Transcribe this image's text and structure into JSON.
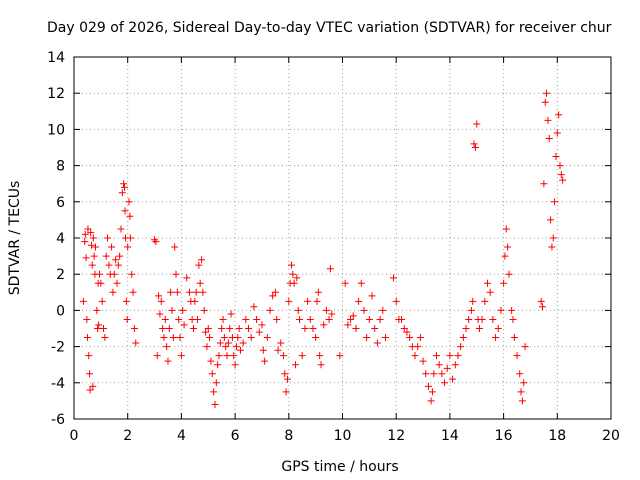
{
  "chart_data": {
    "type": "scatter",
    "title": "Day 029 of 2026, Sidereal Day-to-day VTEC variation (SDTVAR) for receiver chur",
    "xlabel": "GPS time / hours",
    "ylabel": "SDTVAR / TECUs",
    "xlim": [
      0,
      20
    ],
    "ylim": [
      -6,
      14
    ],
    "x_ticks": [
      0,
      2,
      4,
      6,
      8,
      10,
      12,
      14,
      16,
      18,
      20
    ],
    "y_ticks": [
      -6,
      -4,
      -2,
      0,
      2,
      4,
      6,
      8,
      10,
      12,
      14
    ],
    "grid": true,
    "marker": "+",
    "series": [
      {
        "name": "SDTVAR",
        "color": "#ff0000",
        "points": [
          [
            0.35,
            0.5
          ],
          [
            0.4,
            3.8
          ],
          [
            0.42,
            4.2
          ],
          [
            0.45,
            2.9
          ],
          [
            0.48,
            -0.5
          ],
          [
            0.5,
            -1.5
          ],
          [
            0.52,
            4.5
          ],
          [
            0.55,
            -2.5
          ],
          [
            0.58,
            -3.5
          ],
          [
            0.6,
            -4.4
          ],
          [
            0.62,
            4.3
          ],
          [
            0.65,
            3.6
          ],
          [
            0.68,
            2.5
          ],
          [
            0.7,
            -4.2
          ],
          [
            0.72,
            4.0
          ],
          [
            0.75,
            3.0
          ],
          [
            0.78,
            2.0
          ],
          [
            0.8,
            3.5
          ],
          [
            0.85,
            0.0
          ],
          [
            0.88,
            -1.0
          ],
          [
            0.9,
            1.5
          ],
          [
            0.92,
            -0.8
          ],
          [
            0.95,
            2.0
          ],
          [
            1.0,
            1.5
          ],
          [
            1.05,
            0.5
          ],
          [
            1.1,
            -1.0
          ],
          [
            1.15,
            -1.5
          ],
          [
            1.2,
            3.0
          ],
          [
            1.25,
            4.0
          ],
          [
            1.3,
            2.5
          ],
          [
            1.35,
            2.0
          ],
          [
            1.4,
            3.5
          ],
          [
            1.45,
            1.0
          ],
          [
            1.5,
            2.0
          ],
          [
            1.55,
            2.8
          ],
          [
            1.6,
            1.5
          ],
          [
            1.65,
            2.5
          ],
          [
            1.7,
            3.0
          ],
          [
            1.75,
            4.5
          ],
          [
            1.8,
            6.5
          ],
          [
            1.85,
            7.0
          ],
          [
            1.88,
            6.8
          ],
          [
            1.9,
            5.5
          ],
          [
            1.92,
            4.0
          ],
          [
            1.95,
            0.5
          ],
          [
            1.98,
            -0.5
          ],
          [
            2.0,
            3.5
          ],
          [
            2.05,
            6.0
          ],
          [
            2.08,
            5.2
          ],
          [
            2.1,
            4.0
          ],
          [
            2.15,
            2.0
          ],
          [
            2.2,
            1.0
          ],
          [
            2.25,
            -1.0
          ],
          [
            2.3,
            -1.8
          ],
          [
            3.0,
            3.9
          ],
          [
            3.05,
            3.8
          ],
          [
            3.1,
            -2.5
          ],
          [
            3.15,
            0.8
          ],
          [
            3.2,
            -0.2
          ],
          [
            3.25,
            0.5
          ],
          [
            3.3,
            -1.0
          ],
          [
            3.35,
            -1.5
          ],
          [
            3.4,
            -0.5
          ],
          [
            3.45,
            -2.0
          ],
          [
            3.5,
            -2.8
          ],
          [
            3.55,
            -1.0
          ],
          [
            3.6,
            1.0
          ],
          [
            3.65,
            0.0
          ],
          [
            3.7,
            -1.5
          ],
          [
            3.75,
            3.5
          ],
          [
            3.8,
            2.0
          ],
          [
            3.85,
            1.0
          ],
          [
            3.9,
            -0.5
          ],
          [
            3.95,
            -1.5
          ],
          [
            4.0,
            -2.5
          ],
          [
            4.05,
            0.0
          ],
          [
            4.1,
            -0.8
          ],
          [
            4.2,
            1.8
          ],
          [
            4.3,
            1.0
          ],
          [
            4.35,
            0.5
          ],
          [
            4.4,
            -0.5
          ],
          [
            4.45,
            -1.0
          ],
          [
            4.5,
            0.5
          ],
          [
            4.55,
            1.0
          ],
          [
            4.6,
            -0.5
          ],
          [
            4.65,
            2.5
          ],
          [
            4.7,
            1.5
          ],
          [
            4.75,
            2.8
          ],
          [
            4.8,
            1.0
          ],
          [
            4.85,
            0.0
          ],
          [
            4.9,
            -1.2
          ],
          [
            4.95,
            -2.0
          ],
          [
            5.0,
            -1.0
          ],
          [
            5.05,
            -1.5
          ],
          [
            5.1,
            -2.8
          ],
          [
            5.15,
            -3.5
          ],
          [
            5.2,
            -4.5
          ],
          [
            5.25,
            -5.2
          ],
          [
            5.3,
            -4.0
          ],
          [
            5.35,
            -3.0
          ],
          [
            5.4,
            -2.5
          ],
          [
            5.45,
            -1.8
          ],
          [
            5.5,
            -1.0
          ],
          [
            5.55,
            -0.5
          ],
          [
            5.6,
            -1.5
          ],
          [
            5.65,
            -2.0
          ],
          [
            5.7,
            -2.5
          ],
          [
            5.75,
            -1.8
          ],
          [
            5.8,
            -1.0
          ],
          [
            5.85,
            -0.2
          ],
          [
            5.9,
            -1.5
          ],
          [
            5.95,
            -2.5
          ],
          [
            6.0,
            -3.0
          ],
          [
            6.05,
            -2.0
          ],
          [
            6.1,
            -1.5
          ],
          [
            6.15,
            -1.0
          ],
          [
            6.2,
            -2.2
          ],
          [
            6.3,
            -1.8
          ],
          [
            6.4,
            -0.5
          ],
          [
            6.5,
            -1.0
          ],
          [
            6.6,
            -1.5
          ],
          [
            6.7,
            0.2
          ],
          [
            6.8,
            -0.5
          ],
          [
            6.9,
            -1.2
          ],
          [
            7.0,
            -0.8
          ],
          [
            7.05,
            -2.2
          ],
          [
            7.1,
            -2.8
          ],
          [
            7.2,
            -1.5
          ],
          [
            7.3,
            0.0
          ],
          [
            7.4,
            0.8
          ],
          [
            7.5,
            1.0
          ],
          [
            7.55,
            -0.5
          ],
          [
            7.6,
            -2.2
          ],
          [
            7.7,
            -1.8
          ],
          [
            7.8,
            -2.5
          ],
          [
            7.85,
            -3.5
          ],
          [
            7.9,
            -4.5
          ],
          [
            7.95,
            -3.8
          ],
          [
            8.0,
            0.5
          ],
          [
            8.05,
            1.5
          ],
          [
            8.1,
            2.5
          ],
          [
            8.15,
            2.0
          ],
          [
            8.2,
            1.5
          ],
          [
            8.25,
            -3.0
          ],
          [
            8.3,
            1.8
          ],
          [
            8.35,
            0.0
          ],
          [
            8.4,
            -0.5
          ],
          [
            8.5,
            -2.5
          ],
          [
            8.6,
            -1.0
          ],
          [
            8.7,
            0.5
          ],
          [
            8.8,
            -0.5
          ],
          [
            8.9,
            -1.0
          ],
          [
            9.0,
            -1.5
          ],
          [
            9.05,
            0.5
          ],
          [
            9.1,
            1.0
          ],
          [
            9.15,
            -2.5
          ],
          [
            9.2,
            -3.0
          ],
          [
            9.3,
            -0.8
          ],
          [
            9.4,
            0.0
          ],
          [
            9.5,
            -0.5
          ],
          [
            9.55,
            2.3
          ],
          [
            9.6,
            -0.2
          ],
          [
            9.9,
            -2.5
          ],
          [
            10.1,
            1.5
          ],
          [
            10.2,
            -0.8
          ],
          [
            10.3,
            -0.5
          ],
          [
            10.4,
            -0.3
          ],
          [
            10.5,
            -1.0
          ],
          [
            10.6,
            0.5
          ],
          [
            10.7,
            1.5
          ],
          [
            10.8,
            0.0
          ],
          [
            10.9,
            -1.5
          ],
          [
            11.0,
            -0.5
          ],
          [
            11.1,
            0.8
          ],
          [
            11.2,
            -1.0
          ],
          [
            11.3,
            -1.8
          ],
          [
            11.4,
            -0.5
          ],
          [
            11.5,
            0.0
          ],
          [
            11.6,
            -1.5
          ],
          [
            11.9,
            1.8
          ],
          [
            12.0,
            0.5
          ],
          [
            12.1,
            -0.5
          ],
          [
            12.2,
            -0.5
          ],
          [
            12.3,
            -1.0
          ],
          [
            12.4,
            -1.2
          ],
          [
            12.5,
            -1.5
          ],
          [
            12.6,
            -2.0
          ],
          [
            12.7,
            -2.5
          ],
          [
            12.8,
            -2.0
          ],
          [
            12.9,
            -1.5
          ],
          [
            13.0,
            -2.8
          ],
          [
            13.1,
            -3.5
          ],
          [
            13.2,
            -4.2
          ],
          [
            13.3,
            -5.0
          ],
          [
            13.35,
            -4.5
          ],
          [
            13.4,
            -3.5
          ],
          [
            13.5,
            -2.5
          ],
          [
            13.6,
            -3.0
          ],
          [
            13.7,
            -3.5
          ],
          [
            13.8,
            -4.0
          ],
          [
            13.9,
            -3.2
          ],
          [
            14.0,
            -2.5
          ],
          [
            14.1,
            -3.8
          ],
          [
            14.2,
            -3.0
          ],
          [
            14.3,
            -2.5
          ],
          [
            14.4,
            -2.0
          ],
          [
            14.5,
            -1.5
          ],
          [
            14.6,
            -1.0
          ],
          [
            14.7,
            -0.5
          ],
          [
            14.8,
            0.0
          ],
          [
            14.85,
            0.5
          ],
          [
            14.9,
            9.2
          ],
          [
            14.95,
            9.0
          ],
          [
            15.0,
            10.3
          ],
          [
            15.05,
            -0.5
          ],
          [
            15.1,
            -1.0
          ],
          [
            15.2,
            -0.5
          ],
          [
            15.3,
            0.5
          ],
          [
            15.4,
            1.5
          ],
          [
            15.5,
            1.0
          ],
          [
            15.6,
            -0.5
          ],
          [
            15.7,
            -1.5
          ],
          [
            15.8,
            -1.0
          ],
          [
            15.9,
            0.0
          ],
          [
            16.0,
            1.5
          ],
          [
            16.05,
            3.0
          ],
          [
            16.1,
            4.5
          ],
          [
            16.15,
            3.5
          ],
          [
            16.2,
            2.0
          ],
          [
            16.3,
            0.0
          ],
          [
            16.35,
            -0.5
          ],
          [
            16.4,
            -1.5
          ],
          [
            16.5,
            -2.5
          ],
          [
            16.6,
            -3.5
          ],
          [
            16.65,
            -4.5
          ],
          [
            16.7,
            -5.0
          ],
          [
            16.75,
            -4.0
          ],
          [
            16.8,
            -2.0
          ],
          [
            17.4,
            0.5
          ],
          [
            17.45,
            0.2
          ],
          [
            17.5,
            7.0
          ],
          [
            17.55,
            11.5
          ],
          [
            17.6,
            12.0
          ],
          [
            17.65,
            10.5
          ],
          [
            17.7,
            9.5
          ],
          [
            17.75,
            5.0
          ],
          [
            17.8,
            3.5
          ],
          [
            17.85,
            4.0
          ],
          [
            17.9,
            6.0
          ],
          [
            17.95,
            8.5
          ],
          [
            18.0,
            9.8
          ],
          [
            18.05,
            10.8
          ],
          [
            18.1,
            8.0
          ],
          [
            18.15,
            7.5
          ],
          [
            18.2,
            7.2
          ]
        ]
      }
    ]
  }
}
